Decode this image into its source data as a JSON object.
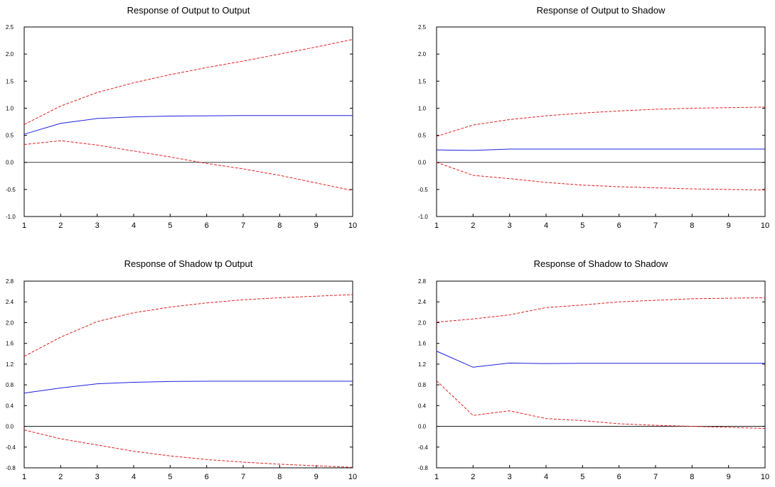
{
  "colors": {
    "center": "#1f1fe0",
    "band": "#e02020",
    "zero": "#000000",
    "frame": "#000000"
  },
  "chart_data": [
    {
      "type": "line",
      "title": "Response of Output to Output",
      "x": [
        1,
        2,
        3,
        4,
        5,
        6,
        7,
        8,
        9,
        10
      ],
      "xticks": [
        "1",
        "2",
        "3",
        "4",
        "5",
        "6",
        "7",
        "8",
        "9",
        "10"
      ],
      "ylim": [
        -1.0,
        2.5
      ],
      "yticks": [
        "-1.0",
        "-0.5",
        "0.0",
        "0.5",
        "1.0",
        "1.5",
        "2.0",
        "2.5"
      ],
      "yticks_values": [
        -1.0,
        -0.5,
        0.0,
        0.5,
        1.0,
        1.5,
        2.0,
        2.5
      ],
      "series": [
        {
          "role": "response",
          "style": "solid",
          "values": [
            0.52,
            0.72,
            0.81,
            0.84,
            0.855,
            0.86,
            0.865,
            0.865,
            0.865,
            0.865
          ]
        },
        {
          "role": "upper",
          "style": "dashed",
          "values": [
            0.7,
            1.04,
            1.29,
            1.47,
            1.62,
            1.75,
            1.87,
            2.0,
            2.13,
            2.27
          ]
        },
        {
          "role": "lower",
          "style": "dashed",
          "values": [
            0.33,
            0.4,
            0.32,
            0.21,
            0.1,
            -0.02,
            -0.12,
            -0.24,
            -0.38,
            -0.52
          ]
        }
      ]
    },
    {
      "type": "line",
      "title": "Response of Output to Shadow",
      "x": [
        1,
        2,
        3,
        4,
        5,
        6,
        7,
        8,
        9,
        10
      ],
      "xticks": [
        "1",
        "2",
        "3",
        "4",
        "5",
        "6",
        "7",
        "8",
        "9",
        "10"
      ],
      "ylim": [
        -1.0,
        2.5
      ],
      "yticks": [
        "-1.0",
        "-0.5",
        "0.0",
        "0.5",
        "1.0",
        "1.5",
        "2.0",
        "2.5"
      ],
      "yticks_values": [
        -1.0,
        -0.5,
        0.0,
        0.5,
        1.0,
        1.5,
        2.0,
        2.5
      ],
      "series": [
        {
          "role": "response",
          "style": "solid",
          "values": [
            0.23,
            0.22,
            0.245,
            0.245,
            0.245,
            0.245,
            0.245,
            0.245,
            0.245,
            0.245
          ]
        },
        {
          "role": "upper",
          "style": "dashed",
          "values": [
            0.48,
            0.69,
            0.79,
            0.86,
            0.91,
            0.95,
            0.98,
            1.0,
            1.01,
            1.02
          ]
        },
        {
          "role": "lower",
          "style": "dashed",
          "values": [
            0.0,
            -0.24,
            -0.3,
            -0.37,
            -0.42,
            -0.45,
            -0.47,
            -0.49,
            -0.5,
            -0.51
          ]
        }
      ]
    },
    {
      "type": "line",
      "title": "Response of Shadow tp Output",
      "x": [
        1,
        2,
        3,
        4,
        5,
        6,
        7,
        8,
        9,
        10
      ],
      "xticks": [
        "1",
        "2",
        "3",
        "4",
        "5",
        "6",
        "7",
        "8",
        "9",
        "10"
      ],
      "ylim": [
        -0.8,
        2.8
      ],
      "yticks": [
        "-0.8",
        "-0.4",
        "0.0",
        "0.4",
        "0.8",
        "1.2",
        "1.6",
        "2.0",
        "2.4",
        "2.8"
      ],
      "yticks_values": [
        -0.8,
        -0.4,
        0.0,
        0.4,
        0.8,
        1.2,
        1.6,
        2.0,
        2.4,
        2.8
      ],
      "series": [
        {
          "role": "response",
          "style": "solid",
          "values": [
            0.64,
            0.74,
            0.82,
            0.85,
            0.865,
            0.87,
            0.87,
            0.87,
            0.87,
            0.87
          ]
        },
        {
          "role": "upper",
          "style": "dashed",
          "values": [
            1.35,
            1.72,
            2.02,
            2.19,
            2.3,
            2.38,
            2.44,
            2.48,
            2.51,
            2.54
          ]
        },
        {
          "role": "lower",
          "style": "dashed",
          "values": [
            -0.07,
            -0.24,
            -0.36,
            -0.48,
            -0.57,
            -0.64,
            -0.69,
            -0.73,
            -0.76,
            -0.79
          ]
        }
      ]
    },
    {
      "type": "line",
      "title": "Response of Shadow to Shadow",
      "x": [
        1,
        2,
        3,
        4,
        5,
        6,
        7,
        8,
        9,
        10
      ],
      "xticks": [
        "1",
        "2",
        "3",
        "4",
        "5",
        "6",
        "7",
        "8",
        "9",
        "10"
      ],
      "ylim": [
        -0.8,
        2.8
      ],
      "yticks": [
        "-0.8",
        "-0.4",
        "0.0",
        "0.4",
        "0.8",
        "1.2",
        "1.6",
        "2.0",
        "2.4",
        "2.8"
      ],
      "yticks_values": [
        -0.8,
        -0.4,
        0.0,
        0.4,
        0.8,
        1.2,
        1.6,
        2.0,
        2.4,
        2.8
      ],
      "series": [
        {
          "role": "response",
          "style": "solid",
          "values": [
            1.45,
            1.14,
            1.22,
            1.21,
            1.215,
            1.215,
            1.215,
            1.215,
            1.215,
            1.215
          ]
        },
        {
          "role": "upper",
          "style": "dashed",
          "values": [
            2.01,
            2.07,
            2.15,
            2.29,
            2.34,
            2.4,
            2.43,
            2.46,
            2.47,
            2.48
          ]
        },
        {
          "role": "lower",
          "style": "dashed",
          "values": [
            0.88,
            0.21,
            0.3,
            0.15,
            0.11,
            0.05,
            0.02,
            0.0,
            -0.02,
            -0.04
          ]
        }
      ]
    }
  ]
}
